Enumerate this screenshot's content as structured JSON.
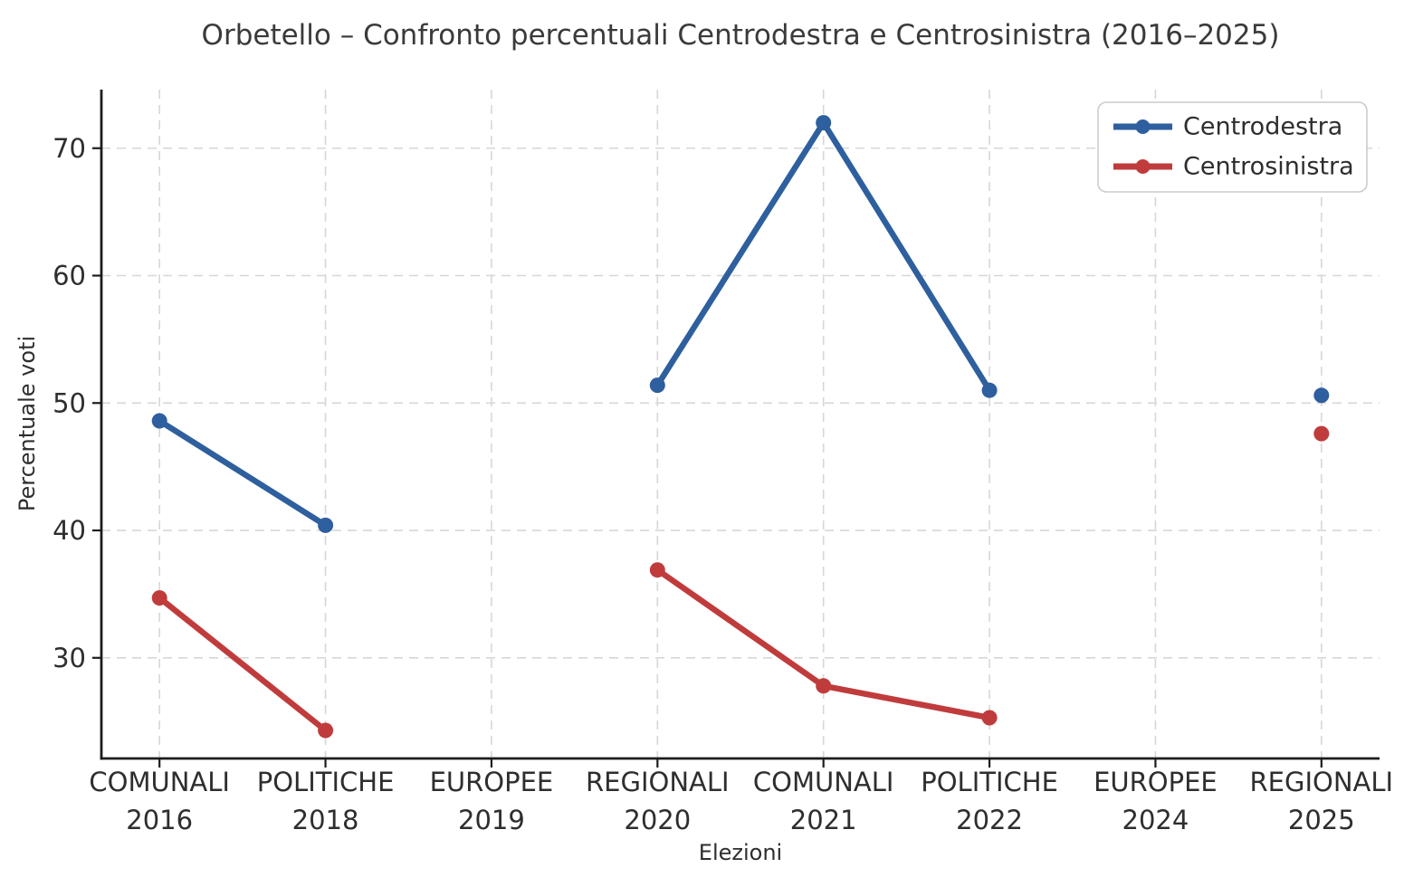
{
  "title": "Orbetello – Confronto percentuali Centrodestra e Centrosinistra (2016–2025)",
  "chart_data": {
    "type": "line",
    "categories": [
      {
        "label": "COMUNALI",
        "year": "2016"
      },
      {
        "label": "POLITICHE",
        "year": "2018"
      },
      {
        "label": "EUROPEE",
        "year": "2019"
      },
      {
        "label": "REGIONALI",
        "year": "2020"
      },
      {
        "label": "COMUNALI",
        "year": "2021"
      },
      {
        "label": "POLITICHE",
        "year": "2022"
      },
      {
        "label": "EUROPEE",
        "year": "2024"
      },
      {
        "label": "REGIONALI",
        "year": "2025"
      }
    ],
    "series": [
      {
        "name": "Centrodestra",
        "color": "#2e5f9e",
        "values": [
          48.6,
          40.4,
          null,
          51.4,
          72.0,
          51.0,
          null,
          50.6
        ]
      },
      {
        "name": "Centrosinistra",
        "color": "#c03c3c",
        "values": [
          34.7,
          24.3,
          null,
          36.9,
          27.8,
          25.3,
          null,
          47.6
        ]
      }
    ],
    "xlabel": "Elezioni",
    "ylabel": "Percentuale voti",
    "yticks": [
      30,
      40,
      50,
      60,
      70
    ],
    "ylim": [
      22.1,
      74.6
    ],
    "grid": true,
    "grid_style": "dashed",
    "legend_position": "upper right"
  },
  "colors": {
    "grid": "#d7d7d7",
    "axis": "#1c1c1c",
    "legend_border": "#cccccc",
    "background": "#ffffff"
  }
}
